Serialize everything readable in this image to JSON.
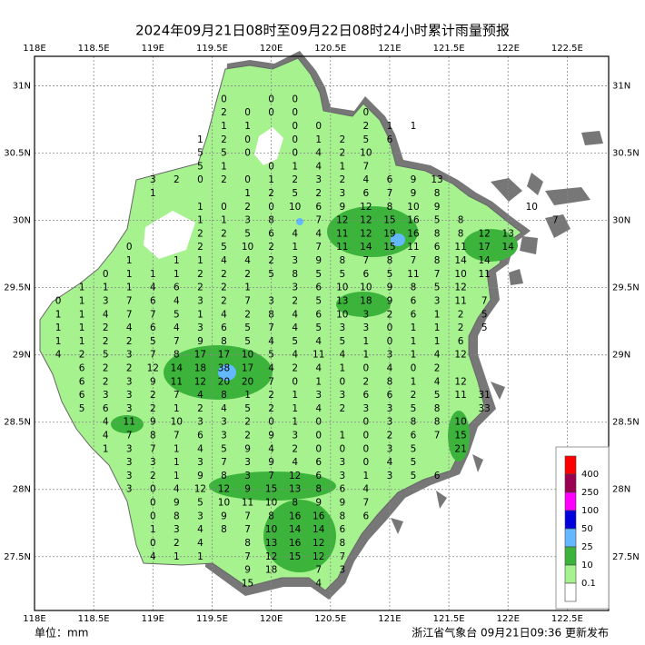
{
  "map": {
    "title": "2024年09月21日08时至09月22日08时24小时累计雨量预报",
    "unit_label": "单位：mm",
    "source_label": "浙江省气象台 09月21日09:36 更新发布",
    "xlim": [
      118,
      122.85
    ],
    "ylim": [
      27.1,
      31.22
    ],
    "xticks": [
      {
        "value": 118,
        "label": "118E"
      },
      {
        "value": 118.5,
        "label": "118.5E"
      },
      {
        "value": 119,
        "label": "119E"
      },
      {
        "value": 119.5,
        "label": "119.5E"
      },
      {
        "value": 120,
        "label": "120E"
      },
      {
        "value": 120.5,
        "label": "120.5E"
      },
      {
        "value": 121,
        "label": "121E"
      },
      {
        "value": 121.5,
        "label": "121.5E"
      },
      {
        "value": 122,
        "label": "122E"
      },
      {
        "value": 122.5,
        "label": "122.5E"
      }
    ],
    "yticks": [
      {
        "value": 31,
        "label": "31N"
      },
      {
        "value": 30.5,
        "label": "30.5N"
      },
      {
        "value": 30,
        "label": "30N"
      },
      {
        "value": 29.5,
        "label": "29.5N"
      },
      {
        "value": 29,
        "label": "29N"
      },
      {
        "value": 28.5,
        "label": "28.5N"
      },
      {
        "value": 28,
        "label": "28N"
      },
      {
        "value": 27.5,
        "label": "27.5N"
      }
    ],
    "grid": true,
    "legend": {
      "colors": [
        "#ff0000",
        "#9b0050",
        "#ff00ff",
        "#0000dd",
        "#63b8ff",
        "#3cb43c",
        "#a6f28f",
        "#ffffff"
      ],
      "labels": [
        "400",
        "250",
        "100",
        "50",
        "25",
        "10",
        "0.1"
      ]
    },
    "stations": [
      {
        "lat": 30.9,
        "lon": [
          119.6,
          120.0,
          120.2
        ],
        "values": [
          0,
          0,
          0
        ]
      },
      {
        "lat": 30.8,
        "lon": [
          119.6,
          119.8,
          120.0,
          120.2,
          120.8
        ],
        "values": [
          2,
          0,
          0,
          0,
          0
        ]
      },
      {
        "lat": 30.7,
        "lon": [
          119.6,
          119.8,
          120.2,
          120.4,
          120.8,
          121.0,
          121.2
        ],
        "values": [
          1,
          1,
          0,
          0,
          2,
          1,
          1
        ]
      },
      {
        "lat": 30.6,
        "lon": [
          119.4,
          119.6,
          119.8,
          120.2,
          120.4,
          120.6,
          120.8,
          121.0
        ],
        "values": [
          1,
          2,
          0,
          0,
          1,
          2,
          5,
          6
        ]
      },
      {
        "lat": 30.5,
        "lon": [
          119.4,
          119.6,
          119.8,
          120.2,
          120.4,
          120.6,
          120.8
        ],
        "values": [
          5,
          5,
          0,
          0,
          4,
          2,
          10
        ]
      },
      {
        "lat": 30.4,
        "lon": [
          119.4,
          119.6,
          120.0,
          120.2,
          120.4,
          120.6,
          120.8
        ],
        "values": [
          5,
          1,
          0,
          1,
          4,
          1,
          7
        ]
      },
      {
        "lat": 30.3,
        "lon": [
          119.0,
          119.2,
          119.4,
          119.6,
          119.8,
          120.0,
          120.2,
          120.4,
          120.6,
          120.8,
          121.0,
          121.2,
          121.4
        ],
        "values": [
          3,
          2,
          0,
          2,
          0,
          1,
          2,
          3,
          2,
          4,
          6,
          9,
          13
        ]
      },
      {
        "lat": 30.2,
        "lon": [
          119.0,
          119.8,
          120.0,
          120.2,
          120.4,
          120.6,
          120.8,
          121.0,
          121.2,
          121.4
        ],
        "values": [
          1,
          1,
          2,
          5,
          2,
          3,
          6,
          7,
          9,
          8
        ]
      },
      {
        "lat": 30.1,
        "lon": [
          119.4,
          119.6,
          119.8,
          120.0,
          120.2,
          120.4,
          120.6,
          120.8,
          121.0,
          121.2,
          121.4,
          122.2
        ],
        "values": [
          1,
          0,
          2,
          0,
          10,
          6,
          9,
          12,
          8,
          10,
          9,
          10
        ]
      },
      {
        "lat": 30.0,
        "lon": [
          119.4,
          119.6,
          119.8,
          120.0,
          120.4,
          120.6,
          120.8,
          121.0,
          121.2,
          121.4,
          121.6,
          122.4
        ],
        "values": [
          1,
          1,
          3,
          8,
          7,
          12,
          12,
          15,
          16,
          5,
          8,
          7
        ]
      },
      {
        "lat": 29.9,
        "lon": [
          119.4,
          119.6,
          119.8,
          120.0,
          120.2,
          120.4,
          120.6,
          120.8,
          121.0,
          121.2,
          121.4,
          121.6,
          121.8,
          122.0
        ],
        "values": [
          2,
          2,
          5,
          6,
          4,
          4,
          11,
          12,
          19,
          16,
          8,
          8,
          12,
          13
        ]
      },
      {
        "lat": 29.8,
        "lon": [
          118.8,
          119.4,
          119.6,
          119.8,
          120.0,
          120.2,
          120.4,
          120.6,
          120.8,
          121.0,
          121.2,
          121.4,
          121.6,
          121.8,
          122.0
        ],
        "values": [
          0,
          2,
          5,
          10,
          2,
          1,
          7,
          11,
          14,
          15,
          11,
          6,
          11,
          17,
          14
        ]
      },
      {
        "lat": 29.7,
        "lon": [
          118.8,
          119.2,
          119.4,
          119.6,
          119.8,
          120.0,
          120.2,
          120.4,
          120.6,
          120.8,
          121.0,
          121.2,
          121.4,
          121.6,
          121.8
        ],
        "values": [
          1,
          1,
          1,
          4,
          4,
          2,
          3,
          9,
          8,
          7,
          8,
          7,
          8,
          14,
          14
        ]
      },
      {
        "lat": 29.6,
        "lon": [
          118.6,
          118.8,
          119.0,
          119.2,
          119.4,
          119.6,
          119.8,
          120.0,
          120.2,
          120.4,
          120.6,
          120.8,
          121.0,
          121.2,
          121.4,
          121.6,
          121.8
        ],
        "values": [
          0,
          1,
          1,
          1,
          2,
          2,
          2,
          5,
          8,
          5,
          5,
          6,
          5,
          11,
          7,
          10,
          11
        ]
      },
      {
        "lat": 29.5,
        "lon": [
          118.4,
          118.6,
          118.8,
          119.0,
          119.2,
          119.4,
          119.6,
          119.8,
          120.2,
          120.4,
          120.6,
          120.8,
          121.0,
          121.2,
          121.4,
          121.6
        ],
        "values": [
          1,
          1,
          1,
          4,
          6,
          2,
          2,
          1,
          3,
          6,
          10,
          10,
          9,
          8,
          5,
          12
        ]
      },
      {
        "lat": 29.4,
        "lon": [
          118.2,
          118.4,
          118.6,
          118.8,
          119.0,
          119.2,
          119.4,
          119.6,
          119.8,
          120.0,
          120.2,
          120.4,
          120.6,
          120.8,
          121.0,
          121.2,
          121.4,
          121.6,
          121.8
        ],
        "values": [
          0,
          1,
          3,
          7,
          6,
          4,
          3,
          2,
          7,
          3,
          2,
          5,
          13,
          18,
          9,
          6,
          3,
          11,
          7
        ]
      },
      {
        "lat": 29.3,
        "lon": [
          118.2,
          118.4,
          118.6,
          118.8,
          119.0,
          119.2,
          119.4,
          119.6,
          119.8,
          120.0,
          120.2,
          120.4,
          120.6,
          120.8,
          121.0,
          121.2,
          121.4,
          121.6,
          121.8
        ],
        "values": [
          1,
          1,
          4,
          7,
          7,
          5,
          1,
          4,
          2,
          8,
          4,
          6,
          10,
          3,
          2,
          6,
          1,
          2,
          5
        ]
      },
      {
        "lat": 29.2,
        "lon": [
          118.2,
          118.4,
          118.6,
          118.8,
          119.0,
          119.2,
          119.4,
          119.6,
          119.8,
          120.0,
          120.2,
          120.4,
          120.6,
          120.8,
          121.0,
          121.2,
          121.4,
          121.6,
          121.8
        ],
        "values": [
          1,
          1,
          2,
          4,
          6,
          4,
          3,
          6,
          5,
          7,
          4,
          5,
          3,
          3,
          0,
          1,
          1,
          2,
          5
        ]
      },
      {
        "lat": 29.1,
        "lon": [
          118.2,
          118.4,
          118.6,
          118.8,
          119.0,
          119.2,
          119.4,
          119.6,
          119.8,
          120.0,
          120.2,
          120.4,
          120.6,
          120.8,
          121.0,
          121.2,
          121.4,
          121.6
        ],
        "values": [
          1,
          1,
          2,
          2,
          5,
          7,
          9,
          8,
          5,
          4,
          5,
          4,
          5,
          1,
          0,
          1,
          1,
          6
        ]
      },
      {
        "lat": 29.0,
        "lon": [
          118.2,
          118.4,
          118.6,
          118.8,
          119.0,
          119.2,
          119.4,
          119.6,
          119.8,
          120.0,
          120.2,
          120.4,
          120.6,
          120.8,
          121.0,
          121.2,
          121.4,
          121.6
        ],
        "values": [
          4,
          2,
          5,
          3,
          7,
          8,
          17,
          17,
          10,
          5,
          4,
          11,
          4,
          1,
          3,
          1,
          4,
          12
        ]
      },
      {
        "lat": 28.9,
        "lon": [
          118.4,
          118.6,
          118.8,
          119.0,
          119.2,
          119.4,
          119.6,
          119.8,
          120.0,
          120.2,
          120.4,
          120.6,
          120.8,
          121.0,
          121.2,
          121.4
        ],
        "values": [
          6,
          2,
          2,
          12,
          14,
          18,
          38,
          17,
          4,
          2,
          4,
          1,
          0,
          4,
          0,
          2
        ]
      },
      {
        "lat": 28.8,
        "lon": [
          118.4,
          118.6,
          118.8,
          119.0,
          119.2,
          119.4,
          119.6,
          119.8,
          120.0,
          120.2,
          120.4,
          120.6,
          120.8,
          121.0,
          121.2,
          121.4,
          121.6
        ],
        "values": [
          6,
          2,
          3,
          9,
          11,
          12,
          20,
          20,
          7,
          0,
          1,
          0,
          2,
          8,
          1,
          4,
          12
        ]
      },
      {
        "lat": 28.7,
        "lon": [
          118.4,
          118.6,
          118.8,
          119.0,
          119.2,
          119.4,
          119.6,
          119.8,
          120.0,
          120.2,
          120.4,
          120.6,
          120.8,
          121.0,
          121.2,
          121.4,
          121.6,
          121.8
        ],
        "values": [
          6,
          3,
          3,
          2,
          7,
          4,
          8,
          1,
          2,
          1,
          3,
          3,
          6,
          6,
          2,
          5,
          11,
          31
        ]
      },
      {
        "lat": 28.6,
        "lon": [
          118.4,
          118.6,
          118.8,
          119.0,
          119.2,
          119.4,
          119.6,
          119.8,
          120.0,
          120.2,
          120.4,
          120.6,
          120.8,
          121.0,
          121.2,
          121.4,
          121.8
        ],
        "values": [
          5,
          6,
          3,
          2,
          1,
          2,
          4,
          5,
          2,
          1,
          4,
          2,
          3,
          3,
          5,
          8,
          33
        ]
      },
      {
        "lat": 28.5,
        "lon": [
          118.6,
          118.8,
          119.0,
          119.2,
          119.4,
          119.6,
          119.8,
          120.0,
          120.2,
          120.4,
          120.8,
          121.0,
          121.2,
          121.4,
          121.6
        ],
        "values": [
          4,
          11,
          9,
          10,
          3,
          3,
          2,
          0,
          1,
          0,
          0,
          3,
          8,
          8,
          10
        ]
      },
      {
        "lat": 28.4,
        "lon": [
          118.6,
          118.8,
          119.0,
          119.2,
          119.4,
          119.6,
          119.8,
          120.0,
          120.2,
          120.4,
          120.6,
          120.8,
          121.0,
          121.2,
          121.4,
          121.6
        ],
        "values": [
          4,
          7,
          8,
          7,
          6,
          3,
          2,
          9,
          3,
          0,
          1,
          0,
          2,
          6,
          7,
          15
        ]
      },
      {
        "lat": 28.3,
        "lon": [
          118.6,
          118.8,
          119.0,
          119.2,
          119.4,
          119.6,
          119.8,
          120.0,
          120.2,
          120.4,
          120.6,
          120.8,
          121.0,
          121.2,
          121.6
        ],
        "values": [
          1,
          3,
          7,
          1,
          4,
          5,
          9,
          4,
          2,
          0,
          0,
          0,
          3,
          5,
          21
        ]
      },
      {
        "lat": 28.2,
        "lon": [
          118.8,
          119.0,
          119.2,
          119.4,
          119.6,
          119.8,
          120.0,
          120.2,
          120.4,
          120.6,
          120.8,
          121.0,
          121.2
        ],
        "values": [
          3,
          3,
          1,
          3,
          7,
          3,
          9,
          4,
          6,
          3,
          0,
          4,
          5
        ]
      },
      {
        "lat": 28.1,
        "lon": [
          118.8,
          119.0,
          119.2,
          119.4,
          119.6,
          119.8,
          120.0,
          120.2,
          120.4,
          120.6,
          120.8,
          121.0,
          121.2,
          121.4
        ],
        "values": [
          3,
          2,
          1,
          9,
          8,
          3,
          7,
          12,
          6,
          3,
          1,
          3,
          5,
          6
        ]
      },
      {
        "lat": 28.0,
        "lon": [
          118.8,
          119.0,
          119.2,
          119.4,
          119.6,
          119.8,
          120.0,
          120.2,
          120.4,
          120.6,
          120.8
        ],
        "values": [
          3,
          0,
          4,
          12,
          12,
          9,
          15,
          13,
          8,
          6,
          4
        ]
      },
      {
        "lat": 27.9,
        "lon": [
          119.0,
          119.2,
          119.4,
          119.6,
          119.8,
          120.0,
          120.2,
          120.4,
          120.6,
          120.8
        ],
        "values": [
          0,
          9,
          5,
          10,
          11,
          10,
          8,
          9,
          9,
          7
        ]
      },
      {
        "lat": 27.8,
        "lon": [
          119.0,
          119.2,
          119.4,
          119.6,
          119.8,
          120.0,
          120.2,
          120.4,
          120.6,
          120.8
        ],
        "values": [
          0,
          8,
          3,
          9,
          7,
          8,
          16,
          16,
          8,
          6
        ]
      },
      {
        "lat": 27.7,
        "lon": [
          119.0,
          119.2,
          119.4,
          119.6,
          119.8,
          120.0,
          120.2,
          120.4,
          120.6
        ],
        "values": [
          1,
          3,
          4,
          8,
          7,
          10,
          14,
          14,
          6
        ]
      },
      {
        "lat": 27.6,
        "lon": [
          119.0,
          119.2,
          119.4,
          119.8,
          120.0,
          120.2,
          120.4,
          120.6
        ],
        "values": [
          0,
          2,
          4,
          8,
          13,
          16,
          12,
          8
        ]
      },
      {
        "lat": 27.5,
        "lon": [
          119.0,
          119.2,
          119.4,
          119.8,
          120.0,
          120.2,
          120.4,
          120.6
        ],
        "values": [
          4,
          1,
          1,
          7,
          12,
          15,
          12,
          7
        ]
      },
      {
        "lat": 27.4,
        "lon": [
          119.8,
          120.0,
          120.4,
          120.6
        ],
        "values": [
          9,
          18,
          7,
          3
        ]
      },
      {
        "lat": 27.3,
        "lon": [
          119.8,
          120.4
        ],
        "values": [
          15,
          4
        ]
      }
    ]
  }
}
